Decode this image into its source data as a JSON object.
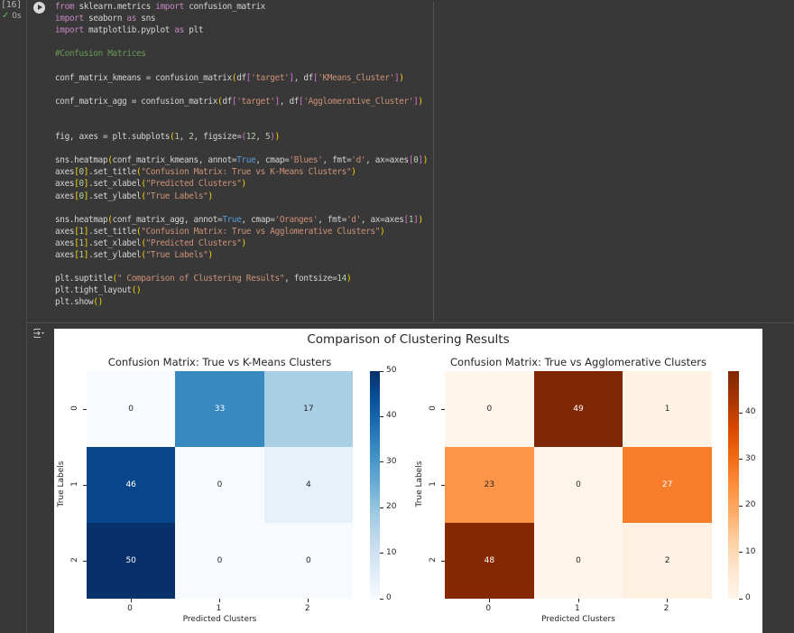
{
  "cell": {
    "execution_count": "[16]",
    "status": "0s",
    "code_lines": [
      [
        [
          "kw",
          "from"
        ],
        [
          "t",
          " sklearn.metrics "
        ],
        [
          "kw",
          "import"
        ],
        [
          "t",
          " confusion_matrix"
        ]
      ],
      [
        [
          "kw",
          "import"
        ],
        [
          "t",
          " seaborn "
        ],
        [
          "kw",
          "as"
        ],
        [
          "t",
          " sns"
        ]
      ],
      [
        [
          "kw",
          "import"
        ],
        [
          "t",
          " matplotlib.pyplot "
        ],
        [
          "kw",
          "as"
        ],
        [
          "t",
          " plt"
        ]
      ],
      [],
      [
        [
          "cm",
          "#Confusion Matrices"
        ]
      ],
      [],
      [
        [
          "t",
          "conf_matrix_kmeans = confusion_matrix"
        ],
        [
          "br",
          "("
        ],
        [
          "t",
          "df"
        ],
        [
          "br2",
          "["
        ],
        [
          "str",
          "'target'"
        ],
        [
          "br2",
          "]"
        ],
        [
          "t",
          ", df"
        ],
        [
          "br2",
          "["
        ],
        [
          "str",
          "'KMeans_Cluster'"
        ],
        [
          "br2",
          "]"
        ],
        [
          "br",
          ")"
        ]
      ],
      [],
      [
        [
          "t",
          "conf_matrix_agg = confusion_matrix"
        ],
        [
          "br",
          "("
        ],
        [
          "t",
          "df"
        ],
        [
          "br2",
          "["
        ],
        [
          "str",
          "'target'"
        ],
        [
          "br2",
          "]"
        ],
        [
          "t",
          ", df"
        ],
        [
          "br2",
          "["
        ],
        [
          "str",
          "'Agglomerative_Cluster'"
        ],
        [
          "br2",
          "]"
        ],
        [
          "br",
          ")"
        ]
      ],
      [],
      [],
      [
        [
          "t",
          "fig, axes = plt.subplots"
        ],
        [
          "br",
          "("
        ],
        [
          "num",
          "1"
        ],
        [
          "t",
          ", "
        ],
        [
          "num",
          "2"
        ],
        [
          "t",
          ", figsize="
        ],
        [
          "br2",
          "("
        ],
        [
          "num",
          "12"
        ],
        [
          "t",
          ", "
        ],
        [
          "num",
          "5"
        ],
        [
          "br2",
          ")"
        ],
        [
          "br",
          ")"
        ]
      ],
      [],
      [
        [
          "t",
          "sns.heatmap"
        ],
        [
          "br",
          "("
        ],
        [
          "t",
          "conf_matrix_kmeans, annot="
        ],
        [
          "bool",
          "True"
        ],
        [
          "t",
          ", cmap="
        ],
        [
          "str",
          "'Blues'"
        ],
        [
          "t",
          ", fmt="
        ],
        [
          "str",
          "'d'"
        ],
        [
          "t",
          ", ax=axes"
        ],
        [
          "br2",
          "["
        ],
        [
          "num",
          "0"
        ],
        [
          "br2",
          "]"
        ],
        [
          "br",
          ")"
        ]
      ],
      [
        [
          "t",
          "axes"
        ],
        [
          "br",
          "["
        ],
        [
          "num",
          "0"
        ],
        [
          "br",
          "]"
        ],
        [
          "t",
          ".set_title"
        ],
        [
          "br",
          "("
        ],
        [
          "str",
          "\"Confusion Matrix: True vs K-Means Clusters\""
        ],
        [
          "br",
          ")"
        ]
      ],
      [
        [
          "t",
          "axes"
        ],
        [
          "br",
          "["
        ],
        [
          "num",
          "0"
        ],
        [
          "br",
          "]"
        ],
        [
          "t",
          ".set_xlabel"
        ],
        [
          "br",
          "("
        ],
        [
          "str",
          "\"Predicted Clusters\""
        ],
        [
          "br",
          ")"
        ]
      ],
      [
        [
          "t",
          "axes"
        ],
        [
          "br",
          "["
        ],
        [
          "num",
          "0"
        ],
        [
          "br",
          "]"
        ],
        [
          "t",
          ".set_ylabel"
        ],
        [
          "br",
          "("
        ],
        [
          "str",
          "\"True Labels\""
        ],
        [
          "br",
          ")"
        ]
      ],
      [],
      [
        [
          "t",
          "sns.heatmap"
        ],
        [
          "br",
          "("
        ],
        [
          "t",
          "conf_matrix_agg, annot="
        ],
        [
          "bool",
          "True"
        ],
        [
          "t",
          ", cmap="
        ],
        [
          "str",
          "'Oranges'"
        ],
        [
          "t",
          ", fmt="
        ],
        [
          "str",
          "'d'"
        ],
        [
          "t",
          ", ax=axes"
        ],
        [
          "br2",
          "["
        ],
        [
          "num",
          "1"
        ],
        [
          "br2",
          "]"
        ],
        [
          "br",
          ")"
        ]
      ],
      [
        [
          "t",
          "axes"
        ],
        [
          "br",
          "["
        ],
        [
          "num",
          "1"
        ],
        [
          "br",
          "]"
        ],
        [
          "t",
          ".set_title"
        ],
        [
          "br",
          "("
        ],
        [
          "str",
          "\"Confusion Matrix: True vs Agglomerative Clusters\""
        ],
        [
          "br",
          ")"
        ]
      ],
      [
        [
          "t",
          "axes"
        ],
        [
          "br",
          "["
        ],
        [
          "num",
          "1"
        ],
        [
          "br",
          "]"
        ],
        [
          "t",
          ".set_xlabel"
        ],
        [
          "br",
          "("
        ],
        [
          "str",
          "\"Predicted Clusters\""
        ],
        [
          "br",
          ")"
        ]
      ],
      [
        [
          "t",
          "axes"
        ],
        [
          "br",
          "["
        ],
        [
          "num",
          "1"
        ],
        [
          "br",
          "]"
        ],
        [
          "t",
          ".set_ylabel"
        ],
        [
          "br",
          "("
        ],
        [
          "str",
          "\"True Labels\""
        ],
        [
          "br",
          ")"
        ]
      ],
      [],
      [
        [
          "t",
          "plt.suptitle"
        ],
        [
          "br",
          "("
        ],
        [
          "str",
          "\" Comparison of Clustering Results\""
        ],
        [
          "t",
          ", fontsize="
        ],
        [
          "num",
          "14"
        ],
        [
          "br",
          ")"
        ]
      ],
      [
        [
          "t",
          "plt.tight_layout"
        ],
        [
          "br",
          "()"
        ]
      ],
      [
        [
          "t",
          "plt.show"
        ],
        [
          "br",
          "()"
        ]
      ]
    ]
  },
  "output": {
    "icon": "output-settings-icon",
    "suptitle": "Comparison of Clustering Results"
  },
  "chart_data": [
    {
      "type": "heatmap",
      "title": "Confusion Matrix: True vs K-Means Clusters",
      "xlabel": "Predicted Clusters",
      "ylabel": "True Labels",
      "x_ticks": [
        "0",
        "1",
        "2"
      ],
      "y_ticks": [
        "0",
        "1",
        "2"
      ],
      "values": [
        [
          0,
          33,
          17
        ],
        [
          46,
          0,
          4
        ],
        [
          50,
          0,
          0
        ]
      ],
      "colormap": "Blues",
      "colorbar": {
        "min": 0,
        "max": 50,
        "ticks": [
          0,
          10,
          20,
          30,
          40,
          50
        ]
      }
    },
    {
      "type": "heatmap",
      "title": "Confusion Matrix: True vs Agglomerative Clusters",
      "xlabel": "Predicted Clusters",
      "ylabel": "True Labels",
      "x_ticks": [
        "0",
        "1",
        "2"
      ],
      "y_ticks": [
        "0",
        "1",
        "2"
      ],
      "values": [
        [
          0,
          49,
          1
        ],
        [
          23,
          0,
          27
        ],
        [
          48,
          0,
          2
        ]
      ],
      "colormap": "Oranges",
      "colorbar": {
        "min": 0,
        "max": 49,
        "ticks": [
          0,
          10,
          20,
          30,
          40
        ]
      }
    }
  ],
  "colors": {
    "background": "#383838",
    "blues": [
      "#f7fbff",
      "#deebf7",
      "#c6dbef",
      "#9ecae1",
      "#6baed6",
      "#4292c6",
      "#2171b5",
      "#08519c",
      "#08306b"
    ],
    "oranges": [
      "#fff5eb",
      "#fee6ce",
      "#fdd0a2",
      "#fdae6b",
      "#fd8d3c",
      "#f16913",
      "#d94801",
      "#a63603",
      "#7f2704"
    ]
  }
}
